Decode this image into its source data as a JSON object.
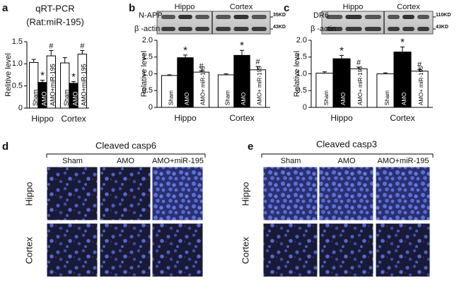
{
  "chart_data": [
    {
      "type": "bar",
      "panel": "a",
      "title": "qRT-PCR",
      "subtitle": "(Rat:miR-195)",
      "y_label": "Relitive level",
      "categories": [
        "Hippo",
        "Cortex"
      ],
      "series": [
        {
          "name": "Sham",
          "color": "#ffffff",
          "values": [
            1.03,
            1.02
          ],
          "errors": [
            0.07,
            0.12
          ]
        },
        {
          "name": "AMO",
          "color": "#000000",
          "values": [
            0.58,
            0.56
          ],
          "errors": [
            0.05,
            0.04
          ],
          "annotation": "*"
        },
        {
          "name": "AMO+miR-195",
          "color": "#ffffff",
          "values": [
            1.18,
            1.22
          ],
          "errors": [
            0.12,
            0.08
          ],
          "annotation": "#"
        }
      ],
      "ylim": [
        0,
        1.5
      ],
      "yticks": [
        0,
        0.5,
        {
          "value": 1,
          "label": "1.0"
        },
        1.5
      ]
    },
    {
      "type": "bar",
      "panel": "b",
      "y_label": "Relative level",
      "categories": [
        "Hippo",
        "Cortex"
      ],
      "series": [
        {
          "name": "Sham",
          "color": "#ffffff",
          "values": [
            0.95,
            0.97
          ],
          "errors": [
            0.02,
            0.03
          ]
        },
        {
          "name": "AMO",
          "color": "#000000",
          "values": [
            1.48,
            1.55
          ],
          "errors": [
            0.08,
            0.15
          ],
          "annotation": "*"
        },
        {
          "name": "AMO+ miR-195",
          "color": "#ffffff",
          "values": [
            1.05,
            1.12
          ],
          "errors": [
            0.04,
            0.1
          ],
          "annotation": "#"
        }
      ],
      "ylim": [
        0,
        2
      ],
      "yticks": [
        0,
        0.5,
        {
          "value": 1,
          "label": "1.0"
        },
        1.5,
        {
          "value": 2,
          "label": "2.0"
        }
      ]
    },
    {
      "type": "bar",
      "panel": "c",
      "y_label": "Relative level",
      "categories": [
        "Hippo",
        "Cortex"
      ],
      "series": [
        {
          "name": "Sham",
          "color": "#ffffff",
          "values": [
            1.02,
            1.0
          ],
          "errors": [
            0.04,
            0.03
          ]
        },
        {
          "name": "AMO",
          "color": "#000000",
          "values": [
            1.45,
            1.65
          ],
          "errors": [
            0.1,
            0.15
          ],
          "annotation": "*"
        },
        {
          "name": "AMO+ miR-195",
          "color": "#ffffff",
          "values": [
            1.15,
            1.08
          ],
          "errors": [
            0.05,
            0.05
          ],
          "annotation": "#"
        }
      ],
      "ylim": [
        0,
        2
      ],
      "yticks": [
        0,
        0.5,
        {
          "value": 1,
          "label": "1.0"
        },
        1.5,
        {
          "value": 2,
          "label": "2.0"
        }
      ]
    }
  ],
  "blots": [
    {
      "labels": [
        "N-APP",
        "β -actin"
      ],
      "regions": [
        "Hippo",
        "Cortex"
      ],
      "sizes": [
        "35KD",
        "43KD"
      ]
    },
    {
      "labels": [
        "DR6",
        "β -actin"
      ],
      "regions": [
        "Hippo",
        "Cortex"
      ],
      "sizes": [
        "110KD",
        "43KD"
      ]
    }
  ],
  "panels": [
    {
      "letter": "d",
      "title": "Cleaved casp6",
      "columns": [
        "Sham",
        "AMO",
        "AMO+miR-195"
      ],
      "rows": [
        "Hippo",
        "Cortex"
      ]
    },
    {
      "letter": "e",
      "title": "Cleaved casp3",
      "columns": [
        "Sham",
        "AMO",
        "AMO+miR-195"
      ],
      "rows": [
        "Hippo",
        "Cortex"
      ]
    }
  ]
}
